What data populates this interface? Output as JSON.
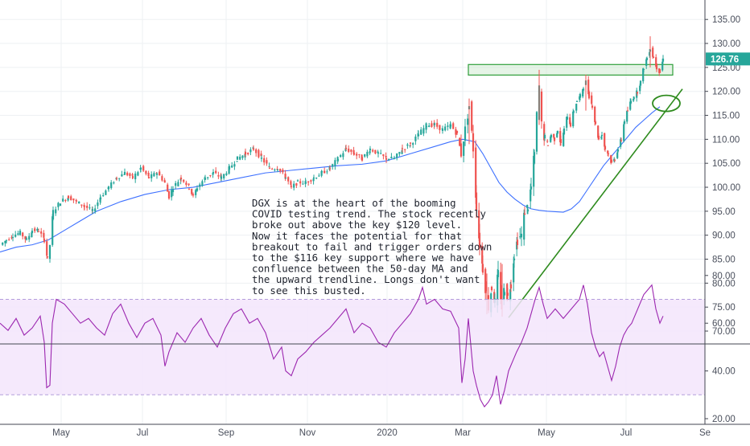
{
  "chart_data": [
    {
      "type": "candlestick",
      "title": "",
      "ylim": [
        68,
        138
      ],
      "y_ticks": [
        "135.00",
        "130.00",
        "125.00",
        "120.00",
        "115.00",
        "110.00",
        "105.00",
        "100.00",
        "95.00",
        "90.00",
        "85.00",
        "80.00",
        "75.00",
        "70.00"
      ],
      "y_tick_values": [
        135,
        130,
        125,
        120,
        115,
        110,
        105,
        100,
        95,
        90,
        85,
        80,
        75,
        70
      ],
      "x_ticks": [
        "May",
        "Jul",
        "Sep",
        "Nov",
        "2020",
        "Mar",
        "May",
        "Jul",
        "Se"
      ],
      "last_price_label": "126.76",
      "last_price": 126.76,
      "price_path": [
        [
          0,
          88
        ],
        [
          8,
          89
        ],
        [
          16,
          90
        ],
        [
          25,
          90.5
        ],
        [
          33,
          89
        ],
        [
          40,
          91
        ],
        [
          48,
          91
        ],
        [
          55,
          89
        ],
        [
          59,
          85
        ],
        [
          62,
          88
        ],
        [
          66,
          95
        ],
        [
          75,
          97
        ],
        [
          85,
          98
        ],
        [
          95,
          97
        ],
        [
          105,
          96
        ],
        [
          115,
          95
        ],
        [
          125,
          98
        ],
        [
          135,
          100
        ],
        [
          145,
          102
        ],
        [
          155,
          103
        ],
        [
          165,
          102
        ],
        [
          175,
          104
        ],
        [
          185,
          102
        ],
        [
          195,
          103
        ],
        [
          205,
          101
        ],
        [
          210,
          98
        ],
        [
          215,
          100
        ],
        [
          225,
          102
        ],
        [
          235,
          100
        ],
        [
          240,
          98
        ],
        [
          245,
          100
        ],
        [
          255,
          102
        ],
        [
          265,
          103
        ],
        [
          275,
          102
        ],
        [
          285,
          104
        ],
        [
          295,
          106
        ],
        [
          305,
          107
        ],
        [
          315,
          108
        ],
        [
          325,
          106
        ],
        [
          335,
          104
        ],
        [
          345,
          104
        ],
        [
          355,
          102
        ],
        [
          362,
          100
        ],
        [
          370,
          101
        ],
        [
          380,
          101
        ],
        [
          390,
          102
        ],
        [
          400,
          103
        ],
        [
          410,
          104
        ],
        [
          420,
          106
        ],
        [
          430,
          108
        ],
        [
          440,
          107
        ],
        [
          450,
          106
        ],
        [
          460,
          108
        ],
        [
          470,
          107
        ],
        [
          480,
          106
        ],
        [
          490,
          106
        ],
        [
          500,
          108
        ],
        [
          510,
          109
        ],
        [
          520,
          111
        ],
        [
          530,
          113
        ],
        [
          540,
          113
        ],
        [
          550,
          112
        ],
        [
          560,
          113
        ],
        [
          568,
          111
        ],
        [
          573,
          107
        ],
        [
          578,
          112
        ],
        [
          583,
          117
        ],
        [
          588,
          108
        ],
        [
          592,
          96
        ],
        [
          596,
          88
        ],
        [
          600,
          83
        ],
        [
          604,
          78
        ],
        [
          607,
          75
        ],
        [
          611,
          79
        ],
        [
          615,
          76
        ],
        [
          619,
          82
        ],
        [
          623,
          76
        ],
        [
          627,
          79
        ],
        [
          631,
          77
        ],
        [
          635,
          80
        ],
        [
          639,
          86
        ],
        [
          643,
          89
        ],
        [
          648,
          90
        ],
        [
          652,
          95
        ],
        [
          656,
          96
        ],
        [
          660,
          100
        ],
        [
          664,
          107
        ],
        [
          667,
          115
        ],
        [
          670,
          121
        ],
        [
          673,
          113
        ],
        [
          677,
          110
        ],
        [
          681,
          109
        ],
        [
          685,
          111
        ],
        [
          689,
          110
        ],
        [
          693,
          112
        ],
        [
          697,
          109
        ],
        [
          701,
          112
        ],
        [
          705,
          115
        ],
        [
          709,
          113
        ],
        [
          713,
          116
        ],
        [
          717,
          118
        ],
        [
          721,
          119
        ],
        [
          725,
          121
        ],
        [
          728,
          122
        ],
        [
          732,
          119
        ],
        [
          736,
          117
        ],
        [
          740,
          113
        ],
        [
          744,
          110
        ],
        [
          748,
          111
        ],
        [
          752,
          108
        ],
        [
          756,
          107
        ],
        [
          760,
          105
        ],
        [
          764,
          106
        ],
        [
          768,
          108
        ],
        [
          772,
          110
        ],
        [
          776,
          114
        ],
        [
          780,
          116
        ],
        [
          784,
          118
        ],
        [
          788,
          119
        ],
        [
          792,
          120
        ],
        [
          796,
          122
        ],
        [
          800,
          125
        ],
        [
          804,
          127
        ],
        [
          808,
          129
        ],
        [
          812,
          127
        ],
        [
          816,
          125
        ],
        [
          820,
          124
        ],
        [
          824,
          126.76
        ]
      ],
      "ma_path": [
        [
          0,
          86.5
        ],
        [
          20,
          87.5
        ],
        [
          40,
          88
        ],
        [
          60,
          89
        ],
        [
          80,
          91
        ],
        [
          100,
          93
        ],
        [
          120,
          95
        ],
        [
          150,
          97
        ],
        [
          180,
          98.5
        ],
        [
          210,
          99.5
        ],
        [
          240,
          100
        ],
        [
          270,
          101
        ],
        [
          300,
          102
        ],
        [
          330,
          103
        ],
        [
          360,
          103.5
        ],
        [
          390,
          104
        ],
        [
          420,
          104.5
        ],
        [
          450,
          104.8
        ],
        [
          480,
          105.5
        ],
        [
          510,
          107
        ],
        [
          540,
          108.5
        ],
        [
          560,
          109.5
        ],
        [
          575,
          110
        ],
        [
          590,
          109.5
        ],
        [
          600,
          107
        ],
        [
          610,
          104
        ],
        [
          620,
          101
        ],
        [
          630,
          99
        ],
        [
          640,
          97.5
        ],
        [
          650,
          96.3
        ],
        [
          660,
          95.5
        ],
        [
          670,
          95.2
        ],
        [
          680,
          95
        ],
        [
          690,
          94.9
        ],
        [
          700,
          94.8
        ],
        [
          710,
          95.5
        ],
        [
          720,
          97
        ],
        [
          730,
          99.5
        ],
        [
          740,
          102
        ],
        [
          750,
          104.5
        ],
        [
          760,
          106.5
        ],
        [
          770,
          108.5
        ],
        [
          780,
          110.5
        ],
        [
          790,
          112.5
        ],
        [
          800,
          114
        ],
        [
          810,
          115.5
        ],
        [
          820,
          116.8
        ]
      ],
      "resistance_zone": {
        "low": 123.4,
        "high": 125.6,
        "x_start": 582,
        "x_end": 836
      },
      "trendline": {
        "start": [
          632,
          72.8
        ],
        "end": [
          848,
          120.5
        ]
      },
      "ellipse_price": 117.5,
      "annotation": {
        "lines": [
          "DGX is at the heart of the booming",
          "COVID testing trend. The stock recently",
          "broke out above the key $120 level.",
          "Now it faces the potential for that",
          "breakout to fail and trigger orders down",
          "to the $116 key support where we have",
          "confluence between the 50-day MA and",
          "the upward trendline. Longs don't want",
          "to see this busted."
        ]
      }
    },
    {
      "type": "line",
      "indicator": "RSI",
      "ylim": [
        18,
        82
      ],
      "y_ticks": [
        "80.00",
        "60.00",
        "40.00",
        "20.00"
      ],
      "y_tick_values": [
        80,
        60,
        40,
        20
      ],
      "band": [
        30,
        70
      ],
      "series": [
        {
          "values": [
            [
              0,
              60
            ],
            [
              10,
              57
            ],
            [
              20,
              62
            ],
            [
              30,
              55
            ],
            [
              40,
              58
            ],
            [
              50,
              63
            ],
            [
              55,
              52
            ],
            [
              58,
              33
            ],
            [
              62,
              34
            ],
            [
              65,
              60
            ],
            [
              70,
              70
            ],
            [
              80,
              68
            ],
            [
              90,
              64
            ],
            [
              100,
              60
            ],
            [
              110,
              62
            ],
            [
              120,
              58
            ],
            [
              130,
              55
            ],
            [
              140,
              64
            ],
            [
              150,
              68
            ],
            [
              160,
              60
            ],
            [
              170,
              54
            ],
            [
              180,
              60
            ],
            [
              190,
              62
            ],
            [
              200,
              55
            ],
            [
              205,
              42
            ],
            [
              210,
              48
            ],
            [
              220,
              56
            ],
            [
              230,
              52
            ],
            [
              240,
              58
            ],
            [
              250,
              62
            ],
            [
              260,
              55
            ],
            [
              270,
              50
            ],
            [
              280,
              58
            ],
            [
              290,
              64
            ],
            [
              300,
              66
            ],
            [
              310,
              60
            ],
            [
              320,
              62
            ],
            [
              330,
              56
            ],
            [
              340,
              45
            ],
            [
              350,
              50
            ],
            [
              355,
              40
            ],
            [
              362,
              38
            ],
            [
              370,
              45
            ],
            [
              380,
              48
            ],
            [
              390,
              52
            ],
            [
              400,
              55
            ],
            [
              410,
              58
            ],
            [
              420,
              62
            ],
            [
              430,
              66
            ],
            [
              440,
              56
            ],
            [
              450,
              60
            ],
            [
              460,
              58
            ],
            [
              470,
              52
            ],
            [
              480,
              50
            ],
            [
              490,
              56
            ],
            [
              500,
              60
            ],
            [
              510,
              64
            ],
            [
              520,
              70
            ],
            [
              525,
              75
            ],
            [
              530,
              68
            ],
            [
              540,
              70
            ],
            [
              550,
              66
            ],
            [
              560,
              65
            ],
            [
              570,
              58
            ],
            [
              574,
              35
            ],
            [
              578,
              45
            ],
            [
              582,
              62
            ],
            [
              588,
              40
            ],
            [
              592,
              34
            ],
            [
              597,
              28
            ],
            [
              602,
              25
            ],
            [
              607,
              27
            ],
            [
              612,
              30
            ],
            [
              617,
              38
            ],
            [
              622,
              26
            ],
            [
              627,
              32
            ],
            [
              632,
              40
            ],
            [
              637,
              44
            ],
            [
              642,
              48
            ],
            [
              648,
              52
            ],
            [
              655,
              58
            ],
            [
              660,
              64
            ],
            [
              665,
              70
            ],
            [
              670,
              75
            ],
            [
              675,
              68
            ],
            [
              680,
              62
            ],
            [
              690,
              66
            ],
            [
              700,
              62
            ],
            [
              710,
              66
            ],
            [
              720,
              70
            ],
            [
              725,
              76
            ],
            [
              730,
              68
            ],
            [
              735,
              56
            ],
            [
              740,
              50
            ],
            [
              745,
              46
            ],
            [
              750,
              48
            ],
            [
              755,
              42
            ],
            [
              760,
              36
            ],
            [
              765,
              42
            ],
            [
              770,
              50
            ],
            [
              775,
              55
            ],
            [
              780,
              58
            ],
            [
              785,
              60
            ],
            [
              790,
              64
            ],
            [
              795,
              68
            ],
            [
              800,
              72
            ],
            [
              805,
              74
            ],
            [
              810,
              76
            ],
            [
              815,
              66
            ],
            [
              820,
              60
            ],
            [
              824,
              63
            ]
          ]
        }
      ]
    }
  ]
}
